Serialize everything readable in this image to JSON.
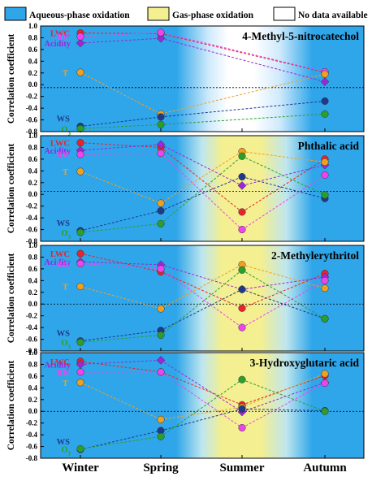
{
  "legend": {
    "aqueous_label": "Aqueous-phase oxidation",
    "gas_label": "Gas-phase oxidation",
    "nodata_label": "No data available"
  },
  "colors": {
    "aqueous_blue": "#2fa6ea",
    "aqueous_light": "#8fd0f6",
    "gas_yellow": "#f4ef90",
    "nodata_white": "#ffffff",
    "LWC": "#e8232b",
    "Acidity": "#9c27d8",
    "RH": "#ee44ee",
    "T": "#f0a020",
    "WS": "#1e3a8a",
    "O3": "#2aa02a"
  },
  "series_labels": {
    "LWC": "LWC",
    "Acidity": "Acidity",
    "RH": "RH",
    "T": "T",
    "WS": "WS",
    "O3": "O3"
  },
  "ylabel": "Correlation coefficient",
  "seasons": [
    "Winter",
    "Spring",
    "Summer",
    "Autumn"
  ],
  "chart_data": [
    {
      "type": "line",
      "title": "4-Methyl-5-nitrocatechol",
      "ylabel": "Correlation coefficient",
      "categories": [
        "Winter",
        "Spring",
        "Summer",
        "Autumn"
      ],
      "ylim": [
        -0.8,
        1.0
      ],
      "yticks": [
        "1.0",
        "0.8",
        "0.6",
        "0.4",
        "0.2",
        "0.0",
        "-0.2",
        "-0.4",
        "-0.6",
        "-0.8"
      ],
      "reference_line": -0.05,
      "background": [
        "aqueous",
        "aqueous",
        "nodata",
        "aqueous"
      ],
      "series": [
        {
          "name": "LWC",
          "values": [
            0.88,
            0.87,
            null,
            0.21
          ]
        },
        {
          "name": "Acidity",
          "values": [
            0.71,
            0.79,
            null,
            0.05
          ]
        },
        {
          "name": "RH",
          "values": [
            0.82,
            0.89,
            null,
            0.22
          ]
        },
        {
          "name": "T",
          "values": [
            0.21,
            -0.5,
            null,
            0.18
          ]
        },
        {
          "name": "WS",
          "values": [
            -0.71,
            -0.55,
            null,
            -0.28
          ]
        },
        {
          "name": "O3",
          "values": [
            -0.75,
            -0.68,
            null,
            -0.5
          ]
        }
      ]
    },
    {
      "type": "line",
      "title": "Phthalic acid",
      "ylabel": "Correlation coefficient",
      "categories": [
        "Winter",
        "Spring",
        "Summer",
        "Autumn"
      ],
      "ylim": [
        -0.8,
        1.0
      ],
      "yticks": [
        "1.0",
        "0.8",
        "0.6",
        "0.4",
        "0.2",
        "0.0",
        "-0.2",
        "-0.4",
        "-0.6",
        "-0.8"
      ],
      "reference_line": 0.05,
      "background": [
        "aqueous",
        "aqueous",
        "gas",
        "aqueous"
      ],
      "series": [
        {
          "name": "LWC",
          "values": [
            0.88,
            0.8,
            -0.3,
            0.6
          ]
        },
        {
          "name": "Acidity",
          "values": [
            0.75,
            0.85,
            0.15,
            0.5
          ]
        },
        {
          "name": "RH",
          "values": [
            0.68,
            0.7,
            -0.6,
            0.33
          ]
        },
        {
          "name": "T",
          "values": [
            0.39,
            -0.15,
            0.73,
            0.55
          ]
        },
        {
          "name": "WS",
          "values": [
            -0.62,
            -0.28,
            0.3,
            -0.07
          ]
        },
        {
          "name": "O3",
          "values": [
            -0.65,
            -0.5,
            0.65,
            -0.01
          ]
        }
      ]
    },
    {
      "type": "line",
      "title": "2-Methylerythritol",
      "ylabel": "Correlation coefficient",
      "categories": [
        "Winter",
        "Spring",
        "Summer",
        "Autumn"
      ],
      "ylim": [
        -0.8,
        1.0
      ],
      "yticks": [
        "1.0",
        "0.8",
        "0.6",
        "0.4",
        "0.2",
        "0.0",
        "-0.2",
        "-0.4",
        "-0.6",
        "-0.8"
      ],
      "reference_line": 0.0,
      "background": [
        "aqueous",
        "aqueous",
        "gas",
        "aqueous"
      ],
      "series": [
        {
          "name": "LWC",
          "values": [
            0.86,
            0.55,
            -0.07,
            0.52
          ]
        },
        {
          "name": "Acidity",
          "values": [
            0.72,
            0.67,
            0.25,
            0.46
          ]
        },
        {
          "name": "RH",
          "values": [
            0.69,
            0.6,
            -0.4,
            0.4
          ]
        },
        {
          "name": "T",
          "values": [
            0.3,
            -0.08,
            0.67,
            0.27
          ]
        },
        {
          "name": "WS",
          "values": [
            -0.63,
            -0.45,
            0.25,
            -0.25
          ]
        },
        {
          "name": "O3",
          "values": [
            -0.65,
            -0.53,
            0.58,
            -0.25
          ]
        }
      ]
    },
    {
      "type": "line",
      "title": "3-Hydroxyglutaric acid",
      "ylabel": "Correlation coefficient",
      "categories": [
        "Winter",
        "Spring",
        "Summer",
        "Autumn"
      ],
      "ylim": [
        -0.8,
        1.0
      ],
      "yticks": [
        "1.0",
        "0.8",
        "0.6",
        "0.4",
        "0.2",
        "0.0",
        "-0.2",
        "-0.4",
        "-0.6",
        "-0.8"
      ],
      "reference_line": 0.0,
      "background": [
        "aqueous",
        "aqueous",
        "gas",
        "aqueous"
      ],
      "series": [
        {
          "name": "LWC",
          "values": [
            0.85,
            0.67,
            0.11,
            0.61
          ]
        },
        {
          "name": "Acidity",
          "values": [
            0.8,
            0.87,
            -0.01,
            0.49
          ]
        },
        {
          "name": "RH",
          "values": [
            0.67,
            0.67,
            -0.28,
            0.48
          ]
        },
        {
          "name": "T",
          "values": [
            0.49,
            -0.14,
            0.07,
            0.64
          ]
        },
        {
          "name": "WS",
          "values": [
            -0.65,
            -0.33,
            0.04,
            0.01
          ]
        },
        {
          "name": "O3",
          "values": [
            -0.64,
            -0.43,
            0.54,
            0.0
          ]
        }
      ]
    }
  ]
}
